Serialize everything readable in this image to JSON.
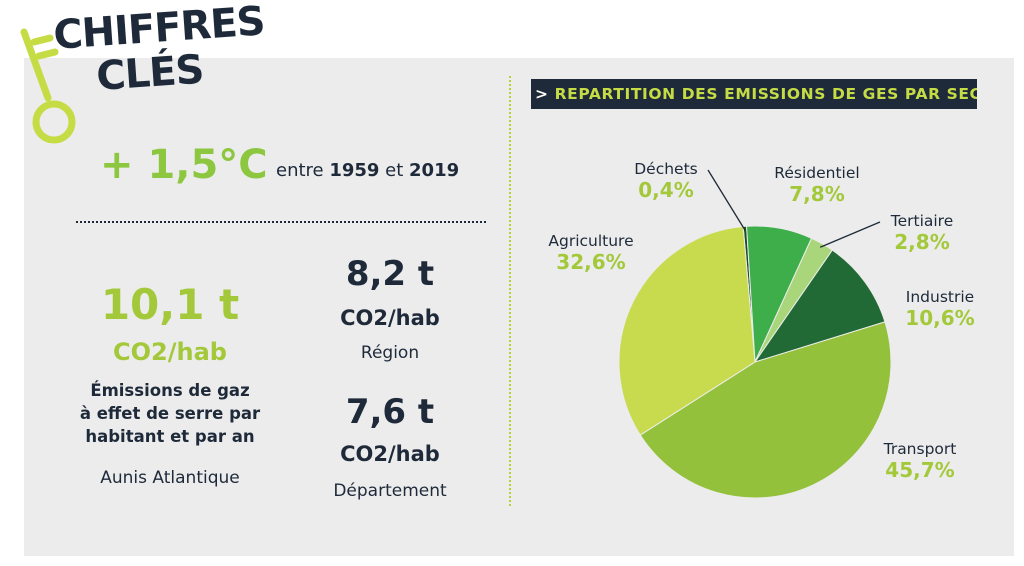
{
  "header": {
    "title_line1": "CHIFFRES",
    "title_line2": "CLÉS"
  },
  "temperature": {
    "value": "+ 1,5°C",
    "text_before": "entre ",
    "year_start": "1959",
    "text_middle": " et ",
    "year_end": "2019"
  },
  "local_emissions": {
    "value": "10,1 t",
    "unit": "CO2/hab",
    "description_lines": [
      "Émissions de gaz",
      "à effet de serre par",
      "habitant et par an"
    ],
    "place": "Aunis Atlantique"
  },
  "region_emissions": {
    "value": "8,2 t",
    "unit": "CO2/hab",
    "place": "Région"
  },
  "department_emissions": {
    "value": "7,6 t",
    "unit": "CO2/hab",
    "place": "Département"
  },
  "chart_data": {
    "type": "pie",
    "title": "REPARTITION DES EMISSIONS DE GES PAR SECTEUR",
    "title_arrow": ">",
    "slices": [
      {
        "name": "Déchets",
        "label": "0,4%",
        "value": 0.4,
        "color": "#1b4e2a"
      },
      {
        "name": "Résidentiel",
        "label": "7,8%",
        "value": 7.8,
        "color": "#3dae49"
      },
      {
        "name": "Tertiaire",
        "label": "2,8%",
        "value": 2.8,
        "color": "#a9d67a"
      },
      {
        "name": "Industrie",
        "label": "10,6%",
        "value": 10.6,
        "color": "#216a35"
      },
      {
        "name": "Transport",
        "label": "45,7%",
        "value": 45.7,
        "color": "#94c13b"
      },
      {
        "name": "Agriculture",
        "label": "32,6%",
        "value": 32.6,
        "color": "#c8db4e"
      }
    ]
  },
  "colors": {
    "navy": "#1e2a3a",
    "green_accent": "#a3c93a",
    "panel_background": "#ececec"
  }
}
